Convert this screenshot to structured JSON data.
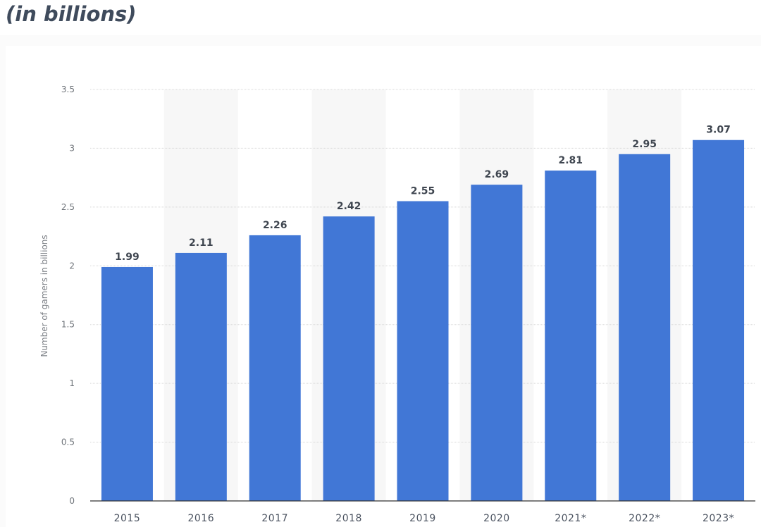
{
  "header": {
    "subtitle": "(in billions)"
  },
  "chart_data": {
    "type": "bar",
    "categories": [
      "2015",
      "2016",
      "2017",
      "2018",
      "2019",
      "2020",
      "2021*",
      "2022*",
      "2023*"
    ],
    "values": [
      1.99,
      2.11,
      2.26,
      2.42,
      2.55,
      2.69,
      2.81,
      2.95,
      3.07
    ],
    "value_labels": [
      "1.99",
      "2.11",
      "2.26",
      "2.42",
      "2.55",
      "2.69",
      "2.81",
      "2.95",
      "3.07"
    ],
    "yticks": [
      "0",
      "0.5",
      "1",
      "1.5",
      "2",
      "2.5",
      "3",
      "3.5"
    ],
    "ylim": [
      0,
      3.5
    ],
    "xlabel": "",
    "ylabel": "Number of gamers in billions",
    "grid": true,
    "bar_color": "#4177d6",
    "alt_band_color": "#f7f7f7",
    "grid_color": "#d8d8d8",
    "axis_color": "#333333"
  }
}
